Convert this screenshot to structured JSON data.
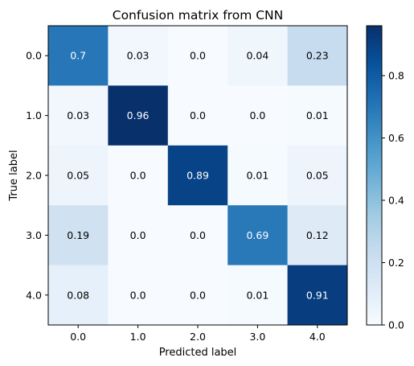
{
  "chart_data": {
    "type": "heatmap",
    "title": "Confusion matrix from CNN",
    "xlabel": "Predicted label",
    "ylabel": "True label",
    "x_categories": [
      "0.0",
      "1.0",
      "2.0",
      "3.0",
      "4.0"
    ],
    "y_categories": [
      "0.0",
      "1.0",
      "2.0",
      "3.0",
      "4.0"
    ],
    "values": [
      [
        0.7,
        0.03,
        0.0,
        0.04,
        0.23
      ],
      [
        0.03,
        0.96,
        0.0,
        0.0,
        0.01
      ],
      [
        0.05,
        0.0,
        0.89,
        0.01,
        0.05
      ],
      [
        0.19,
        0.0,
        0.0,
        0.69,
        0.12
      ],
      [
        0.08,
        0.0,
        0.0,
        0.01,
        0.91
      ]
    ],
    "value_labels": [
      [
        "0.7",
        "0.03",
        "0.0",
        "0.04",
        "0.23"
      ],
      [
        "0.03",
        "0.96",
        "0.0",
        "0.0",
        "0.01"
      ],
      [
        "0.05",
        "0.0",
        "0.89",
        "0.01",
        "0.05"
      ],
      [
        "0.19",
        "0.0",
        "0.0",
        "0.69",
        "0.12"
      ],
      [
        "0.08",
        "0.0",
        "0.0",
        "0.01",
        "0.91"
      ]
    ],
    "colormap": "Blues",
    "color_low": "#f7fbff",
    "color_high": "#08306b",
    "colorbar": {
      "range": [
        0.0,
        0.96
      ],
      "ticks": [
        0.0,
        0.2,
        0.4,
        0.6,
        0.8
      ],
      "tick_labels": [
        "0.0",
        "0.2",
        "0.4",
        "0.6",
        "0.8"
      ]
    },
    "text_color_threshold": 0.48,
    "grid": false
  }
}
